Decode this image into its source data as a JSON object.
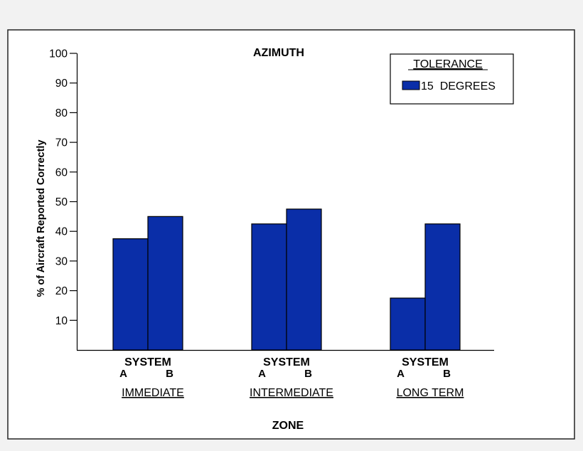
{
  "chart_data": {
    "type": "bar",
    "title": "AZIMUTH",
    "xlabel": "ZONE",
    "ylabel": "% of Aircraft Reported Correctly",
    "ylim": [
      0,
      100
    ],
    "yticks": [
      "10",
      "20",
      "30",
      "40",
      "50",
      "60",
      "70",
      "80",
      "90",
      "100"
    ],
    "grid": false,
    "legend": {
      "title": "TOLERANCE",
      "placement": "top-right",
      "entries": [
        {
          "label": "15  DEGREES",
          "color": "#0a2ea8"
        }
      ]
    },
    "bar_color": "#0a2ea8",
    "groups": [
      {
        "name": "IMMEDIATE",
        "system_label": "SYSTEM",
        "bars": [
          {
            "label": "A",
            "value": 37.5
          },
          {
            "label": "B",
            "value": 45
          }
        ]
      },
      {
        "name": "INTERMEDIATE",
        "system_label": "SYSTEM",
        "bars": [
          {
            "label": "A",
            "value": 42.5
          },
          {
            "label": "B",
            "value": 47.5
          }
        ]
      },
      {
        "name": "LONG TERM",
        "system_label": "SYSTEM",
        "bars": [
          {
            "label": "A",
            "value": 17.5
          },
          {
            "label": "B",
            "value": 42.5
          }
        ]
      }
    ]
  }
}
